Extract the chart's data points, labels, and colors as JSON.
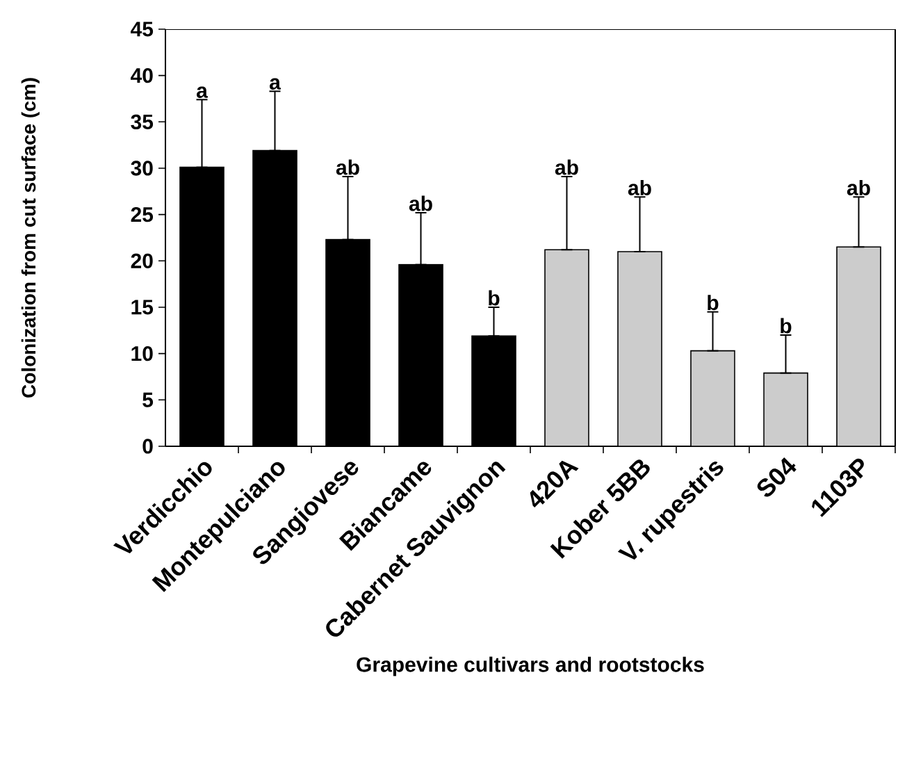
{
  "chart_data": {
    "type": "bar",
    "xlabel": "Grapevine cultivars and rootstocks",
    "ylabel": "Colonization from cut surface (cm)",
    "categories": [
      "Verdicchio",
      "Montepulciano",
      "Sangiovese",
      "Biancame",
      "Cabernet Sauvignon",
      "420A",
      "Kober 5BB",
      "V. rupestris",
      "S04",
      "1103P"
    ],
    "values": [
      30.1,
      31.9,
      22.3,
      19.6,
      11.9,
      21.2,
      21.0,
      10.3,
      7.9,
      21.5
    ],
    "errors": [
      [
        30.1,
        37.4
      ],
      [
        31.9,
        38.3
      ],
      [
        22.3,
        29.1
      ],
      [
        19.6,
        25.2
      ],
      [
        11.9,
        15.0
      ],
      [
        21.2,
        29.1
      ],
      [
        21.0,
        26.9
      ],
      [
        10.3,
        14.5
      ],
      [
        7.9,
        12.0
      ],
      [
        21.5,
        26.9
      ]
    ],
    "colors": [
      "#000000",
      "#000000",
      "#000000",
      "#000000",
      "#000000",
      "#cccccc",
      "#cccccc",
      "#cccccc",
      "#cccccc",
      "#cccccc"
    ],
    "ylim": [
      0,
      45
    ],
    "yticks": [
      0,
      5,
      10,
      15,
      20,
      25,
      30,
      35,
      40,
      45
    ],
    "annotations": [
      {
        "text": "a",
        "x": "Verdicchio",
        "y": 37.4
      },
      {
        "text": "a",
        "x": "Montepulciano",
        "y": 38.3
      },
      {
        "text": "ab",
        "x": "Sangiovese",
        "y": 29.1
      },
      {
        "text": "ab",
        "x": "Biancame",
        "y": 25.2
      },
      {
        "text": "b",
        "x": "Cabernet Sauvignon",
        "y": 15.0
      },
      {
        "text": "ab",
        "x": "420A",
        "y": 29.1
      },
      {
        "text": "ab",
        "x": "Kober 5BB",
        "y": 26.9
      },
      {
        "text": "b",
        "x": "V. rupestris",
        "y": 14.5
      },
      {
        "text": "b",
        "x": "S04",
        "y": 12.0
      },
      {
        "text": "ab",
        "x": "1103P",
        "y": 26.9
      }
    ]
  }
}
